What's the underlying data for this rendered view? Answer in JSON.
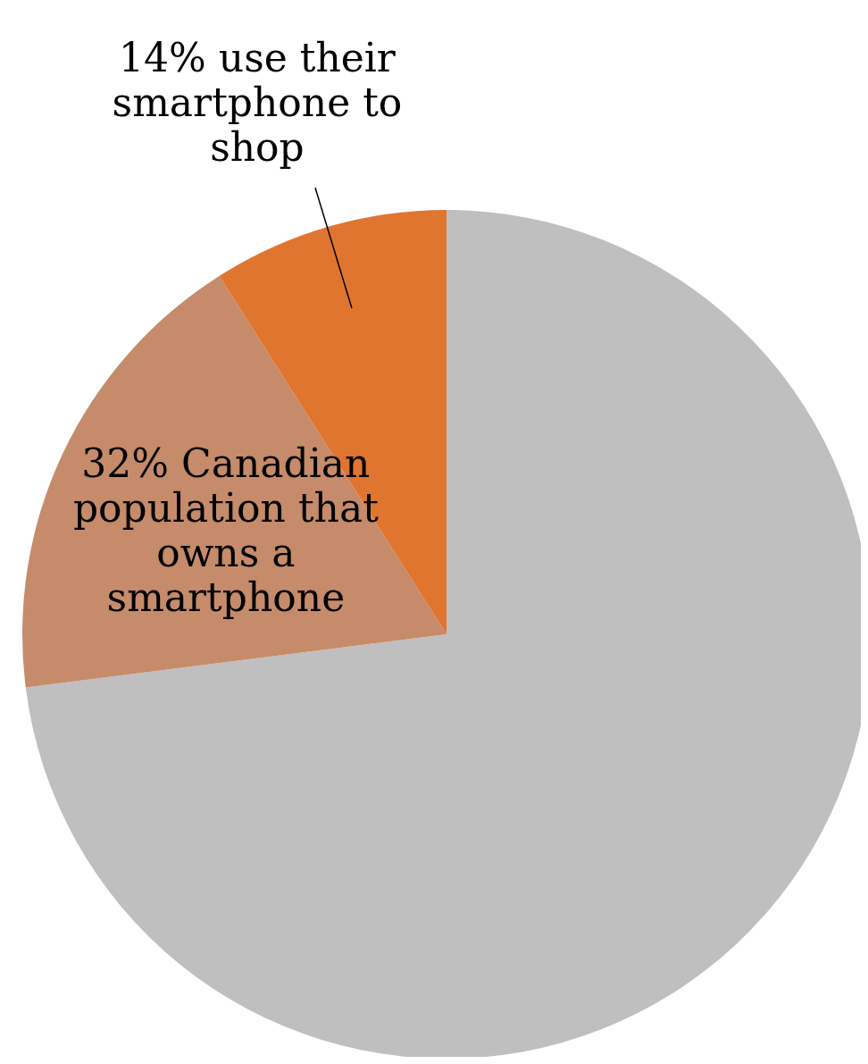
{
  "chart_data": {
    "type": "pie",
    "categories": [
      null,
      "32% Canadian population that owns a smartphone",
      "14% use their smartphone to shop"
    ],
    "values": [
      73,
      18,
      9
    ],
    "colors": [
      "#bfbfbf",
      "#c68b6a",
      "#e07530"
    ]
  }
}
